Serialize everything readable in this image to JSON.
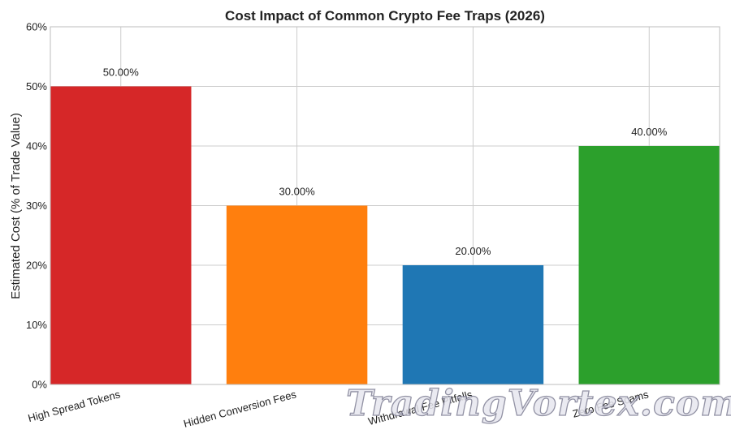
{
  "chart_data": {
    "type": "bar",
    "title": "Cost Impact of Common Crypto Fee Traps (2026)",
    "xlabel": "",
    "ylabel": "Estimated Cost (% of Trade Value)",
    "categories": [
      "High Spread Tokens",
      "Hidden Conversion Fees",
      "Withdrawal Fee Pitfalls",
      "Zero Fee Scams"
    ],
    "values": [
      50,
      30,
      20,
      40
    ],
    "value_labels": [
      "50.00%",
      "30.00%",
      "20.00%",
      "40.00%"
    ],
    "colors": [
      "#d62728",
      "#ff7f0e",
      "#1f77b4",
      "#2ca02c"
    ],
    "ylim": [
      0,
      60
    ],
    "yticks": [
      0,
      10,
      20,
      30,
      40,
      50,
      60
    ],
    "ytick_labels": [
      "0%",
      "10%",
      "20%",
      "30%",
      "40%",
      "50%",
      "60%"
    ],
    "grid": true,
    "legend": "none"
  },
  "watermark": "TradingVortex.com"
}
